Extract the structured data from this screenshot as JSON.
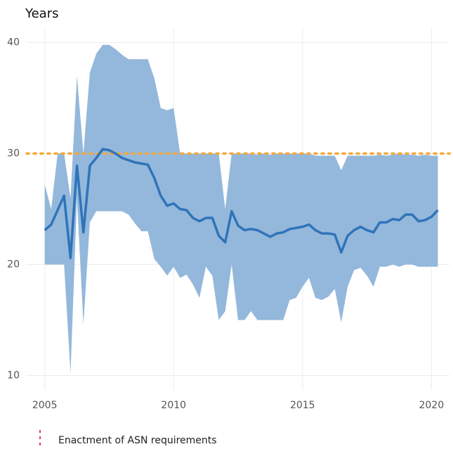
{
  "chart_data": {
    "type": "line",
    "title": "Years",
    "x": [
      2005,
      2005.25,
      2005.5,
      2005.75,
      2006,
      2006.25,
      2006.5,
      2006.75,
      2007,
      2007.25,
      2007.5,
      2007.75,
      2008,
      2008.25,
      2008.5,
      2008.75,
      2009,
      2009.25,
      2009.5,
      2009.75,
      2010,
      2010.25,
      2010.5,
      2010.75,
      2011,
      2011.25,
      2011.5,
      2011.75,
      2012,
      2012.25,
      2012.5,
      2012.75,
      2013,
      2013.25,
      2013.5,
      2013.75,
      2014,
      2014.25,
      2014.5,
      2014.75,
      2015,
      2015.25,
      2015.5,
      2015.75,
      2016,
      2016.25,
      2016.5,
      2016.75,
      2017,
      2017.25,
      2017.5,
      2017.75,
      2018,
      2018.25,
      2018.5,
      2018.75,
      2019,
      2019.25,
      2019.5,
      2019.75,
      2020,
      2020.25
    ],
    "series": [
      {
        "color": "#2f74ba",
        "values": [
          23.1,
          23.6,
          24.9,
          26.2,
          20.6,
          28.9,
          22.9,
          28.9,
          29.6,
          30.4,
          30.3,
          30.0,
          29.6,
          29.4,
          29.2,
          29.1,
          29.0,
          27.8,
          26.2,
          25.3,
          25.5,
          25.0,
          24.9,
          24.2,
          23.9,
          24.2,
          24.2,
          22.6,
          22.0,
          24.8,
          23.5,
          23.1,
          23.2,
          23.1,
          22.8,
          22.5,
          22.8,
          22.9,
          23.2,
          23.3,
          23.4,
          23.6,
          23.1,
          22.8,
          22.8,
          22.7,
          21.1,
          22.6,
          23.1,
          23.4,
          23.1,
          22.9,
          23.8,
          23.8,
          24.1,
          24.0,
          24.5,
          24.5,
          23.9,
          24.0,
          24.3,
          24.9
        ]
      }
    ],
    "band": {
      "color": "#94b8db",
      "upper": [
        27.2,
        25,
        30,
        30,
        26,
        37,
        30,
        37.3,
        39,
        39.8,
        39.8,
        39.4,
        38.9,
        38.5,
        38.5,
        38.5,
        38.5,
        36.8,
        34.1,
        33.9,
        34.1,
        30,
        30,
        30,
        30,
        30,
        30,
        30,
        25,
        30,
        30,
        30,
        30,
        29.9,
        30,
        29.9,
        30,
        30,
        30,
        30,
        30,
        30,
        29.8,
        29.8,
        29.8,
        29.8,
        28.5,
        29.8,
        29.8,
        29.8,
        29.8,
        29.8,
        29.9,
        29.8,
        29.9,
        30,
        29.9,
        29.9,
        29.8,
        29.9,
        29.8,
        29.8
      ],
      "lower": [
        20,
        20,
        20,
        20,
        10.2,
        26,
        14.6,
        23.8,
        24.8,
        24.8,
        24.8,
        24.8,
        24.8,
        24.5,
        23.7,
        23.0,
        23.0,
        20.5,
        19.8,
        19.0,
        19.8,
        18.8,
        19.1,
        18.2,
        17.0,
        19.8,
        19.0,
        15.0,
        15.8,
        20.0,
        15.0,
        15.0,
        15.8,
        15.0,
        15.0,
        15.0,
        15.0,
        15.0,
        16.8,
        17.0,
        18.0,
        18.8,
        17.0,
        16.8,
        17.1,
        17.8,
        14.8,
        18.0,
        19.5,
        19.7,
        19.0,
        18.0,
        19.8,
        19.8,
        20.0,
        19.8,
        20.0,
        20.0,
        19.8,
        19.8,
        19.8,
        19.8
      ]
    },
    "hline": {
      "value": 30,
      "color": "#f4a938"
    },
    "legend": {
      "label": "Enactment of ASN requirements",
      "color": "#e8336e"
    },
    "xlim": [
      2004.3,
      2020.7
    ],
    "xticks": [
      2005,
      2010,
      2015,
      2020
    ],
    "ylim": [
      8.7,
      41.3
    ],
    "yticks": [
      10,
      20,
      30,
      40
    ],
    "grid": true
  }
}
